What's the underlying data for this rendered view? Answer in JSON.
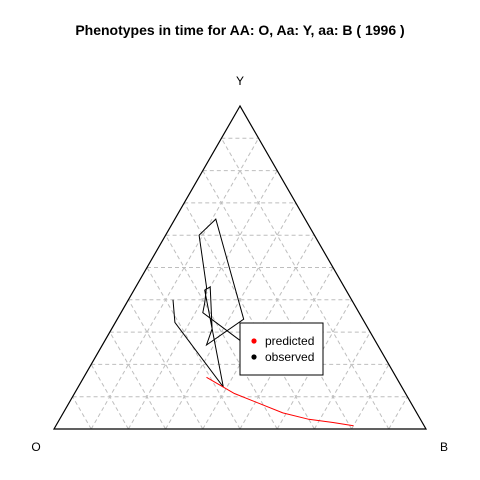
{
  "chart_data": {
    "type": "ternary",
    "title": "Phenotypes in time for  AA: O, Aa: Y, aa: B  ( 1996 )",
    "vertices": {
      "top": "Y",
      "left": "O",
      "right": "B"
    },
    "grid": true,
    "grid_divisions": 10,
    "legend": {
      "placement": "center-right",
      "entries": [
        {
          "label": "predicted",
          "color": "#ff0000"
        },
        {
          "label": "observed",
          "color": "#000000"
        }
      ]
    },
    "series": [
      {
        "name": "observed",
        "color": "#000000",
        "comment_composition": "O, Y, B fractions",
        "points": [
          [
            0.36,
            0.27,
            0.37
          ],
          [
            0.42,
            0.36,
            0.22
          ],
          [
            0.4,
            0.39,
            0.21
          ],
          [
            0.37,
            0.44,
            0.19
          ],
          [
            0.31,
            0.6,
            0.09
          ],
          [
            0.24,
            0.65,
            0.11
          ],
          [
            0.32,
            0.34,
            0.34
          ],
          [
            0.46,
            0.26,
            0.28
          ],
          [
            0.42,
            0.31,
            0.27
          ],
          [
            0.36,
            0.44,
            0.2
          ],
          [
            0.38,
            0.43,
            0.19
          ],
          [
            0.48,
            0.13,
            0.39
          ],
          [
            0.51,
            0.33,
            0.16
          ],
          [
            0.48,
            0.4,
            0.12
          ]
        ]
      },
      {
        "name": "predicted",
        "color": "#ff0000",
        "points": [
          [
            0.51,
            0.16,
            0.33
          ],
          [
            0.46,
            0.11,
            0.43
          ],
          [
            0.41,
            0.08,
            0.51
          ],
          [
            0.36,
            0.05,
            0.59
          ],
          [
            0.3,
            0.03,
            0.67
          ],
          [
            0.24,
            0.02,
            0.74
          ],
          [
            0.19,
            0.01,
            0.8
          ]
        ]
      }
    ]
  }
}
